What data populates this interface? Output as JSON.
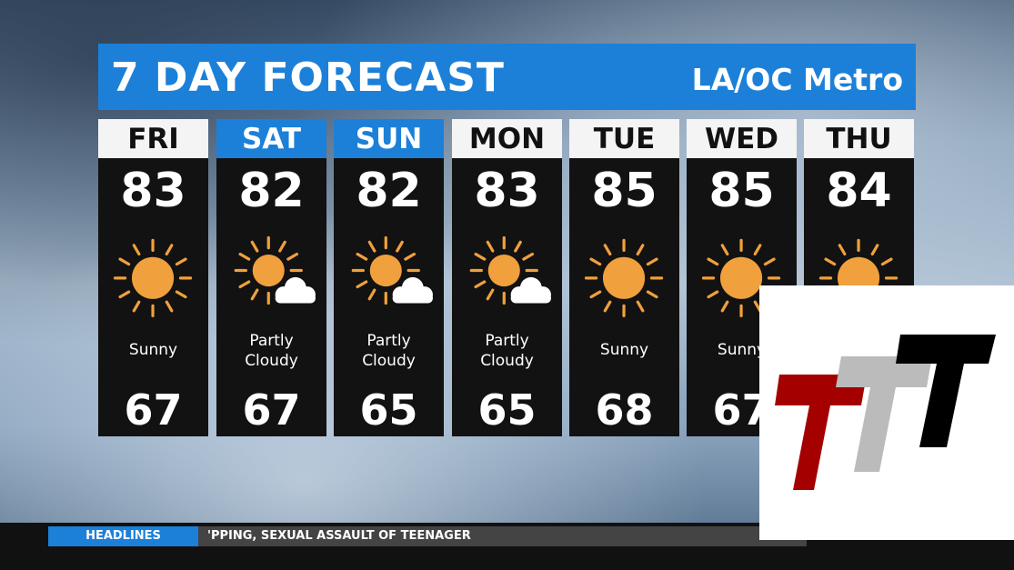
{
  "header": {
    "title": "7 DAY FORECAST",
    "region": "LA/OC Metro"
  },
  "colors": {
    "accent": "#1c80d8",
    "sun": "#f0a03c"
  },
  "days": [
    {
      "day": "FRI",
      "high": "83",
      "low": "67",
      "condition": "Sunny",
      "icon": "sun-icon",
      "weekend": false
    },
    {
      "day": "SAT",
      "high": "82",
      "low": "67",
      "condition": "Partly Cloudy",
      "icon": "partly-cloudy-icon",
      "weekend": true
    },
    {
      "day": "SUN",
      "high": "82",
      "low": "65",
      "condition": "Partly Cloudy",
      "icon": "partly-cloudy-icon",
      "weekend": true
    },
    {
      "day": "MON",
      "high": "83",
      "low": "65",
      "condition": "Partly Cloudy",
      "icon": "partly-cloudy-icon",
      "weekend": false
    },
    {
      "day": "TUE",
      "high": "85",
      "low": "68",
      "condition": "Sunny",
      "icon": "sun-icon",
      "weekend": false
    },
    {
      "day": "WED",
      "high": "85",
      "low": "67",
      "condition": "Sunny",
      "icon": "sun-icon",
      "weekend": false
    },
    {
      "day": "THU",
      "high": "84",
      "low": "",
      "condition": "",
      "icon": "sun-icon",
      "weekend": false
    }
  ],
  "ticker": {
    "label": "HEADLINES",
    "text": "'PPING, SEXUAL ASSAULT OF TEENAGER"
  },
  "logo": {
    "text": "TTT"
  }
}
